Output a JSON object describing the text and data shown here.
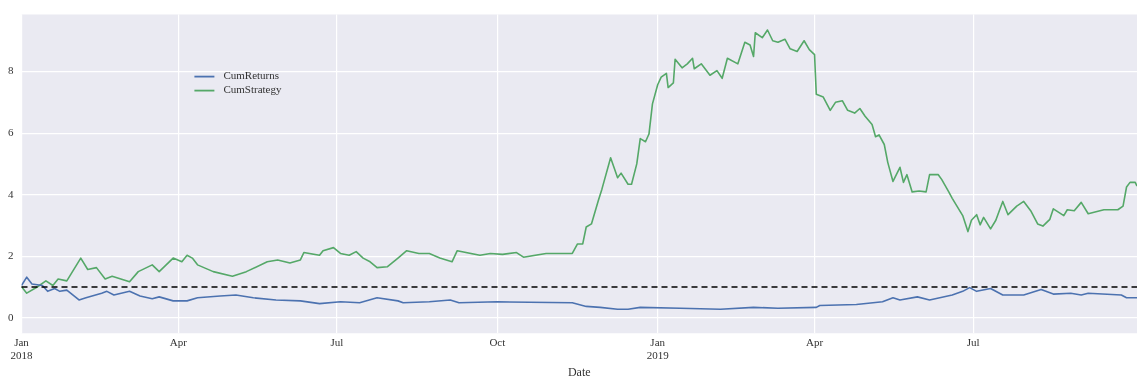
{
  "chart_data": {
    "type": "line",
    "xlabel": "Date",
    "xlim": [
      "2018-01-01",
      "2019-10-03"
    ],
    "ylim": [
      -0.5,
      9.85
    ],
    "xticks": [
      {
        "value": "2018-01-01",
        "label": "Jan\n2018"
      },
      {
        "value": "2018-04-01",
        "label": "Apr"
      },
      {
        "value": "2018-07-01",
        "label": "Jul"
      },
      {
        "value": "2018-10-01",
        "label": "Oct"
      },
      {
        "value": "2019-01-01",
        "label": "Jan\n2019"
      },
      {
        "value": "2019-04-01",
        "label": "Apr"
      },
      {
        "value": "2019-07-01",
        "label": "Jul"
      }
    ],
    "yticks": [
      0,
      2,
      4,
      6,
      8
    ],
    "grid": true,
    "legend": "top left",
    "ref_lines": [
      {
        "axis": "y",
        "value": 1,
        "color": "#000000",
        "line_style": "dashed"
      }
    ],
    "series": [
      {
        "name": "CumReturns",
        "color": "#4c72b0",
        "x": [
          "2018-01-01",
          "2018-01-04",
          "2018-01-07",
          "2018-01-13",
          "2018-01-16",
          "2018-01-20",
          "2018-01-23",
          "2018-01-27",
          "2018-02-03",
          "2018-02-07",
          "2018-02-16",
          "2018-02-19",
          "2018-02-23",
          "2018-03-04",
          "2018-03-10",
          "2018-03-17",
          "2018-03-21",
          "2018-03-29",
          "2018-04-06",
          "2018-04-12",
          "2018-04-25",
          "2018-05-04",
          "2018-05-14",
          "2018-05-27",
          "2018-06-10",
          "2018-06-21",
          "2018-07-03",
          "2018-07-14",
          "2018-07-24",
          "2018-08-05",
          "2018-08-08",
          "2018-08-23",
          "2018-09-04",
          "2018-09-09",
          "2018-10-01",
          "2018-11-13",
          "2018-11-21",
          "2018-11-29",
          "2018-12-09",
          "2018-12-15",
          "2018-12-22",
          "2019-01-14",
          "2019-02-06",
          "2019-02-25",
          "2019-03-11",
          "2019-04-02",
          "2019-04-04",
          "2019-04-25",
          "2019-05-10",
          "2019-05-16",
          "2019-05-20",
          "2019-05-30",
          "2019-06-06",
          "2019-06-19",
          "2019-06-25",
          "2019-06-29",
          "2019-07-03",
          "2019-07-11",
          "2019-07-18",
          "2019-07-30",
          "2019-08-09",
          "2019-08-16",
          "2019-08-26",
          "2019-09-01",
          "2019-09-05",
          "2019-09-24",
          "2019-09-27",
          "2019-10-03"
        ],
        "values": [
          1.05,
          1.32,
          1.1,
          1.05,
          0.86,
          0.95,
          0.86,
          0.9,
          0.58,
          0.65,
          0.8,
          0.86,
          0.74,
          0.86,
          0.71,
          0.62,
          0.68,
          0.55,
          0.55,
          0.65,
          0.71,
          0.74,
          0.65,
          0.58,
          0.55,
          0.46,
          0.52,
          0.49,
          0.65,
          0.55,
          0.49,
          0.52,
          0.58,
          0.49,
          0.52,
          0.49,
          0.37,
          0.34,
          0.28,
          0.28,
          0.34,
          0.31,
          0.28,
          0.34,
          0.31,
          0.34,
          0.4,
          0.43,
          0.52,
          0.65,
          0.58,
          0.68,
          0.58,
          0.74,
          0.86,
          0.98,
          0.86,
          0.95,
          0.74,
          0.74,
          0.92,
          0.77,
          0.8,
          0.74,
          0.8,
          0.74,
          0.65,
          0.65
        ]
      },
      {
        "name": "CumStrategy",
        "color": "#55a868",
        "x": [
          "2018-01-01",
          "2018-01-04",
          "2018-01-10",
          "2018-01-15",
          "2018-01-19",
          "2018-01-22",
          "2018-01-27",
          "2018-02-04",
          "2018-02-08",
          "2018-02-13",
          "2018-02-18",
          "2018-02-22",
          "2018-03-04",
          "2018-03-09",
          "2018-03-17",
          "2018-03-21",
          "2018-03-29",
          "2018-04-03",
          "2018-04-06",
          "2018-04-09",
          "2018-04-12",
          "2018-04-21",
          "2018-05-02",
          "2018-05-10",
          "2018-05-22",
          "2018-05-28",
          "2018-06-04",
          "2018-06-10",
          "2018-06-12",
          "2018-06-21",
          "2018-06-23",
          "2018-06-29",
          "2018-07-03",
          "2018-07-08",
          "2018-07-12",
          "2018-07-16",
          "2018-07-20",
          "2018-07-24",
          "2018-07-30",
          "2018-08-05",
          "2018-08-10",
          "2018-08-17",
          "2018-08-23",
          "2018-08-29",
          "2018-09-05",
          "2018-09-08",
          "2018-09-21",
          "2018-09-27",
          "2018-10-04",
          "2018-10-12",
          "2018-10-16",
          "2018-10-29",
          "2018-11-13",
          "2018-11-16",
          "2018-11-19",
          "2018-11-21",
          "2018-11-24",
          "2018-11-28",
          "2018-11-30",
          "2018-12-05",
          "2018-12-09",
          "2018-12-11",
          "2018-12-15",
          "2018-12-17",
          "2018-12-20",
          "2018-12-22",
          "2018-12-25",
          "2018-12-27",
          "2018-12-29",
          "2019-01-01",
          "2019-01-03",
          "2019-01-06",
          "2019-01-07",
          "2019-01-10",
          "2019-01-11",
          "2019-01-15",
          "2019-01-18",
          "2019-01-21",
          "2019-01-22",
          "2019-01-26",
          "2019-01-31",
          "2019-02-04",
          "2019-02-07",
          "2019-02-10",
          "2019-02-16",
          "2019-02-20",
          "2019-02-23",
          "2019-02-25",
          "2019-02-26",
          "2019-03-02",
          "2019-03-05",
          "2019-03-08",
          "2019-03-11",
          "2019-03-15",
          "2019-03-18",
          "2019-03-22",
          "2019-03-26",
          "2019-03-29",
          "2019-04-01",
          "2019-04-02",
          "2019-04-06",
          "2019-04-10",
          "2019-04-13",
          "2019-04-17",
          "2019-04-20",
          "2019-04-24",
          "2019-04-27",
          "2019-04-30",
          "2019-05-04",
          "2019-05-06",
          "2019-05-08",
          "2019-05-11",
          "2019-05-13",
          "2019-05-16",
          "2019-05-20",
          "2019-05-22",
          "2019-05-24",
          "2019-05-27",
          "2019-05-31",
          "2019-06-04",
          "2019-06-06",
          "2019-06-11",
          "2019-06-13",
          "2019-06-17",
          "2019-06-19",
          "2019-06-25",
          "2019-06-28",
          "2019-06-30",
          "2019-07-03",
          "2019-07-05",
          "2019-07-07",
          "2019-07-11",
          "2019-07-14",
          "2019-07-16",
          "2019-07-18",
          "2019-07-21",
          "2019-07-26",
          "2019-07-30",
          "2019-08-03",
          "2019-08-07",
          "2019-08-10",
          "2019-08-14",
          "2019-08-16",
          "2019-08-22",
          "2019-08-24",
          "2019-08-28",
          "2019-09-01",
          "2019-09-05",
          "2019-09-14",
          "2019-09-22",
          "2019-09-25",
          "2019-09-27",
          "2019-09-29",
          "2019-10-02",
          "2019-10-03"
        ],
        "values": [
          1.01,
          0.8,
          1.0,
          1.2,
          1.05,
          1.26,
          1.2,
          1.94,
          1.57,
          1.63,
          1.26,
          1.35,
          1.17,
          1.5,
          1.72,
          1.5,
          1.94,
          1.82,
          2.03,
          1.94,
          1.72,
          1.5,
          1.35,
          1.5,
          1.82,
          1.88,
          1.78,
          1.88,
          2.12,
          2.03,
          2.18,
          2.28,
          2.09,
          2.03,
          2.15,
          1.94,
          1.82,
          1.63,
          1.66,
          1.94,
          2.18,
          2.09,
          2.09,
          1.94,
          1.82,
          2.18,
          2.03,
          2.09,
          2.06,
          2.12,
          1.97,
          2.09,
          2.09,
          2.4,
          2.4,
          2.95,
          3.05,
          3.82,
          4.18,
          5.2,
          4.55,
          4.7,
          4.34,
          4.34,
          5.0,
          5.82,
          5.72,
          5.97,
          6.95,
          7.57,
          7.82,
          7.94,
          7.48,
          7.63,
          8.4,
          8.12,
          8.25,
          8.43,
          8.09,
          8.25,
          7.88,
          8.03,
          7.78,
          8.43,
          8.25,
          8.95,
          8.86,
          8.49,
          9.26,
          9.1,
          9.35,
          9.0,
          8.95,
          9.05,
          8.74,
          8.65,
          9.0,
          8.71,
          8.55,
          7.26,
          7.17,
          6.74,
          7.0,
          7.05,
          6.74,
          6.65,
          6.8,
          6.55,
          6.28,
          5.88,
          5.94,
          5.63,
          5.05,
          4.43,
          4.89,
          4.4,
          4.65,
          4.09,
          4.12,
          4.09,
          4.65,
          4.65,
          4.49,
          4.09,
          3.88,
          3.32,
          2.8,
          3.17,
          3.35,
          3.02,
          3.26,
          2.89,
          3.17,
          3.48,
          3.78,
          3.35,
          3.63,
          3.78,
          3.48,
          3.05,
          2.98,
          3.2,
          3.54,
          3.32,
          3.51,
          3.48,
          3.75,
          3.38,
          3.51,
          3.51,
          3.63,
          4.25,
          4.4,
          4.4,
          4.28
        ]
      }
    ]
  }
}
